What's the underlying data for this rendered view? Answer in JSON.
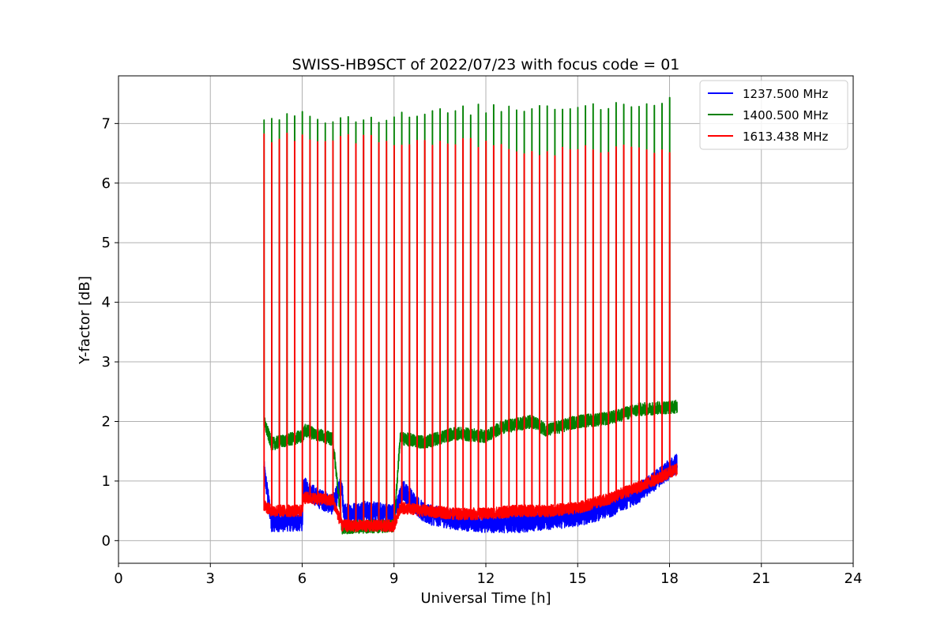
{
  "chart_data": {
    "type": "line",
    "title": "SWISS-HB9SCT of 2022/07/23 with focus code = 01",
    "xlabel": "Universal Time [h]",
    "ylabel": "Y-factor [dB]",
    "xlim": [
      0,
      24
    ],
    "ylim": [
      -0.38,
      7.8
    ],
    "xticks": [
      0,
      3,
      6,
      9,
      12,
      15,
      18,
      21,
      24
    ],
    "yticks": [
      0,
      1,
      2,
      3,
      4,
      5,
      6,
      7
    ],
    "grid": true,
    "legend_position": "top-right",
    "time_range": [
      4.75,
      18.25
    ],
    "calibration_interval_h": 0.25,
    "series": [
      {
        "name": "1237.500 MHz",
        "color": "#0000ff",
        "baseline_points": [
          [
            4.75,
            1.2
          ],
          [
            5.0,
            0.32
          ],
          [
            6.0,
            0.32
          ],
          [
            6.05,
            0.9
          ],
          [
            6.5,
            0.72
          ],
          [
            7.0,
            0.6
          ],
          [
            7.3,
            0.95
          ],
          [
            7.35,
            0.45
          ],
          [
            8.0,
            0.5
          ],
          [
            9.0,
            0.45
          ],
          [
            9.3,
            0.85
          ],
          [
            10.0,
            0.45
          ],
          [
            11.0,
            0.35
          ],
          [
            12.0,
            0.3
          ],
          [
            13.0,
            0.3
          ],
          [
            14.0,
            0.35
          ],
          [
            15.0,
            0.4
          ],
          [
            16.0,
            0.55
          ],
          [
            17.0,
            0.8
          ],
          [
            18.25,
            1.3
          ]
        ],
        "peak": 1.2
      },
      {
        "name": "1400.500 MHz",
        "color": "#008000",
        "baseline_points": [
          [
            4.75,
            2.0
          ],
          [
            5.0,
            1.62
          ],
          [
            6.0,
            1.75
          ],
          [
            6.1,
            1.85
          ],
          [
            7.0,
            1.7
          ],
          [
            7.3,
            0.22
          ],
          [
            9.0,
            0.25
          ],
          [
            9.2,
            1.72
          ],
          [
            10.0,
            1.65
          ],
          [
            11.0,
            1.8
          ],
          [
            12.0,
            1.75
          ],
          [
            12.5,
            1.9
          ],
          [
            13.5,
            2.0
          ],
          [
            14.0,
            1.85
          ],
          [
            15.0,
            2.0
          ],
          [
            16.0,
            2.05
          ],
          [
            17.0,
            2.2
          ],
          [
            18.25,
            2.25
          ]
        ],
        "peak_points": [
          [
            4.75,
            7.1
          ],
          [
            6.0,
            7.2
          ],
          [
            7.0,
            7.05
          ],
          [
            8.0,
            7.1
          ],
          [
            9.0,
            7.1
          ],
          [
            10.0,
            7.15
          ],
          [
            11.0,
            7.2
          ],
          [
            12.0,
            7.25
          ],
          [
            13.0,
            7.25
          ],
          [
            14.0,
            7.3
          ],
          [
            15.0,
            7.3
          ],
          [
            16.0,
            7.3
          ],
          [
            17.0,
            7.35
          ],
          [
            18.0,
            7.35
          ]
        ]
      },
      {
        "name": "1613.438 MHz",
        "color": "#ff0000",
        "baseline_points": [
          [
            4.75,
            0.6
          ],
          [
            5.0,
            0.5
          ],
          [
            6.0,
            0.5
          ],
          [
            6.05,
            0.72
          ],
          [
            7.0,
            0.68
          ],
          [
            7.3,
            0.25
          ],
          [
            9.0,
            0.25
          ],
          [
            9.2,
            0.55
          ],
          [
            10.0,
            0.5
          ],
          [
            11.0,
            0.45
          ],
          [
            12.0,
            0.45
          ],
          [
            13.0,
            0.5
          ],
          [
            14.0,
            0.5
          ],
          [
            15.0,
            0.55
          ],
          [
            16.0,
            0.7
          ],
          [
            17.0,
            0.9
          ],
          [
            18.25,
            1.2
          ]
        ],
        "peak_points": [
          [
            4.75,
            6.75
          ],
          [
            6.0,
            6.8
          ],
          [
            7.0,
            6.72
          ],
          [
            8.0,
            6.75
          ],
          [
            9.0,
            6.72
          ],
          [
            10.0,
            6.72
          ],
          [
            11.0,
            6.7
          ],
          [
            12.0,
            6.65
          ],
          [
            13.0,
            6.5
          ],
          [
            14.0,
            6.5
          ],
          [
            15.0,
            6.55
          ],
          [
            16.0,
            6.6
          ],
          [
            17.0,
            6.6
          ],
          [
            18.0,
            6.55
          ]
        ]
      }
    ]
  }
}
